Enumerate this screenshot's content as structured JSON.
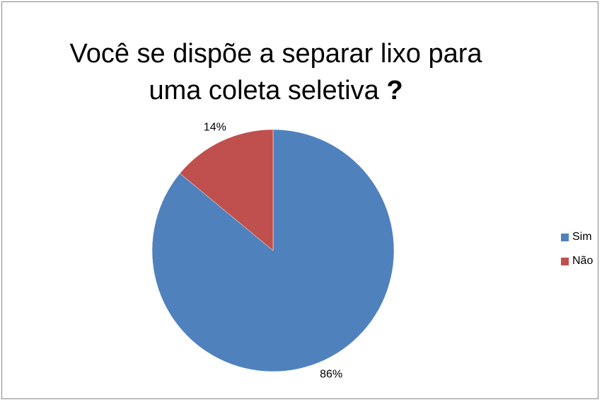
{
  "chart_data": {
    "type": "pie",
    "title_line1": "Você se dispõe a separar lixo para",
    "title_line2": "uma coleta seletiva",
    "title_qmark": "?",
    "categories": [
      "Sim",
      "Não"
    ],
    "values": [
      86,
      14
    ],
    "data_labels": [
      "86%",
      "14%"
    ],
    "colors": [
      "#4F81BD",
      "#C0504D"
    ],
    "legend_position": "right"
  }
}
